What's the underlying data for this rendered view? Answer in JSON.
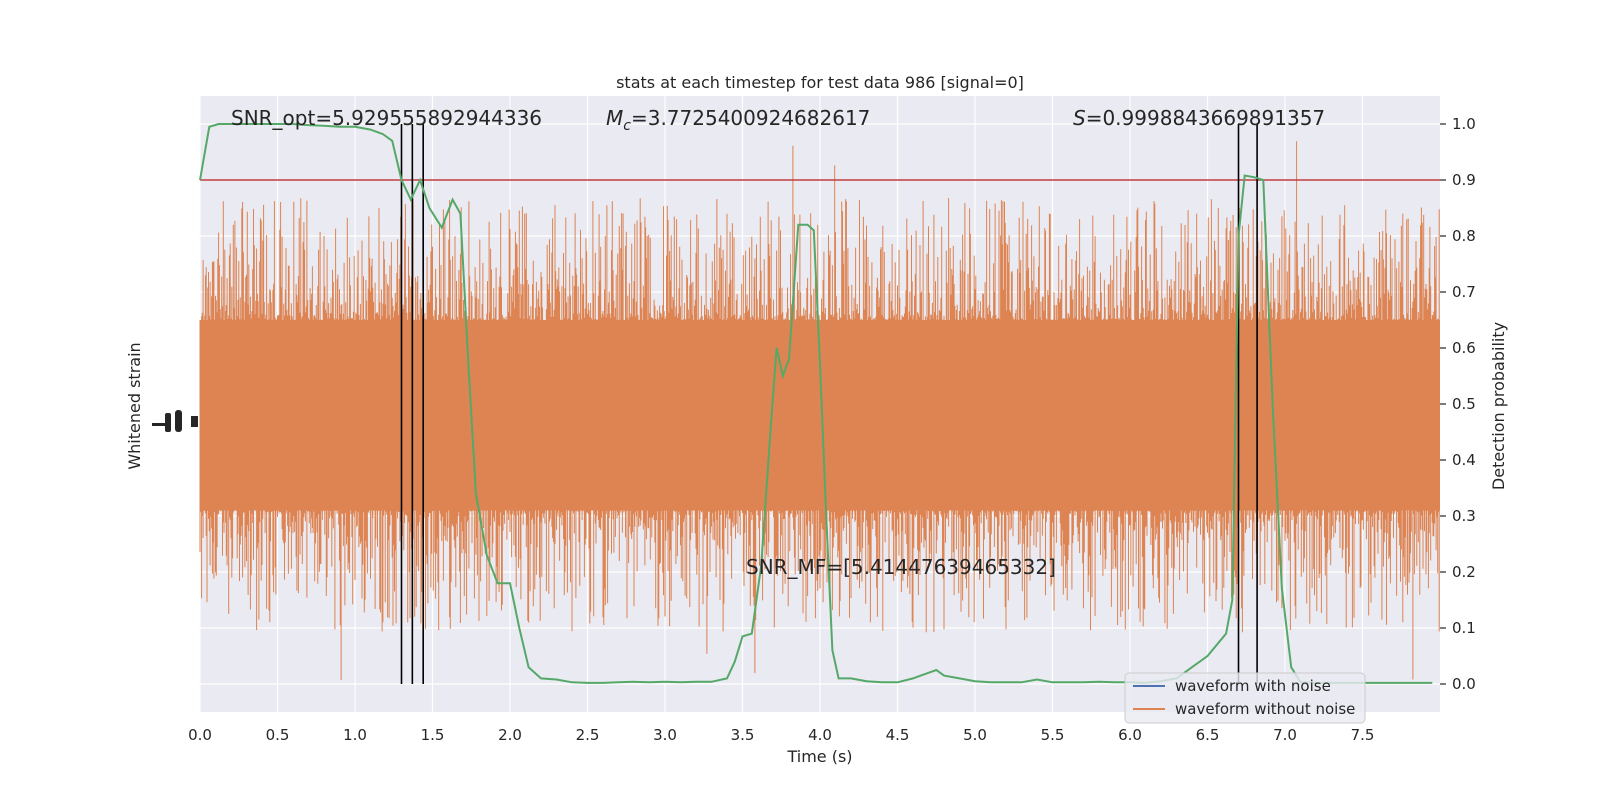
{
  "chart_data": {
    "type": "line",
    "title": "stats at each timestep for test data 986 [signal=0]",
    "xlabel": "Time (s)",
    "ylabel_left": "Whitened strain",
    "ylabel_right": "Detection probability",
    "xlim": [
      0,
      8.0
    ],
    "ylim_right": [
      -0.05,
      1.05
    ],
    "x_ticks": [
      "0.0",
      "0.5",
      "1.0",
      "1.5",
      "2.0",
      "2.5",
      "3.0",
      "3.5",
      "4.0",
      "4.5",
      "5.0",
      "5.5",
      "6.0",
      "6.5",
      "7.0",
      "7.5"
    ],
    "y_ticks_right": [
      "0.0",
      "0.1",
      "0.2",
      "0.3",
      "0.4",
      "0.5",
      "0.6",
      "0.7",
      "0.8",
      "0.9",
      "1.0"
    ],
    "grid": true,
    "legend_position": "lower-right",
    "annotations": {
      "snr_opt": "SNR_opt=5.929555892944336",
      "mc_symbol": "M",
      "mc_sub": "c",
      "mc_value": "=3.7725400924682617",
      "s_symbol": "S",
      "s_value": "=0.9998843669891357",
      "snr_mf": "SNR_MF=[5.41447639465332]"
    },
    "threshold": 0.9,
    "threshold_color": "#c03d3e",
    "detection_lines_x": [
      1.3,
      1.37,
      1.44,
      6.7,
      6.82
    ],
    "series": [
      {
        "name": "waveform with noise",
        "color": "#4c72b0",
        "values": []
      },
      {
        "name": "waveform without noise",
        "color": "#dd8452",
        "description_envelope": {
          "band_upper": 0.65,
          "band_lower": 0.31,
          "peak_max": 1.0,
          "peak_min": 0.0
        }
      },
      {
        "name": "",
        "color": "#55a868",
        "axis": "right",
        "x": [
          0.0,
          0.06,
          0.12,
          0.2,
          0.3,
          0.4,
          0.5,
          0.6,
          0.7,
          0.8,
          0.9,
          1.0,
          1.1,
          1.18,
          1.24,
          1.3,
          1.36,
          1.42,
          1.48,
          1.56,
          1.63,
          1.68,
          1.73,
          1.78,
          1.85,
          1.92,
          2.0,
          2.06,
          2.12,
          2.2,
          2.3,
          2.4,
          2.5,
          2.6,
          2.7,
          2.8,
          2.9,
          3.0,
          3.1,
          3.2,
          3.3,
          3.4,
          3.45,
          3.5,
          3.56,
          3.62,
          3.68,
          3.72,
          3.76,
          3.8,
          3.86,
          3.92,
          3.96,
          4.0,
          4.04,
          4.08,
          4.12,
          4.2,
          4.3,
          4.4,
          4.5,
          4.6,
          4.65,
          4.7,
          4.75,
          4.8,
          4.9,
          5.0,
          5.1,
          5.2,
          5.3,
          5.4,
          5.5,
          5.6,
          5.7,
          5.8,
          5.9,
          6.0,
          6.1,
          6.2,
          6.3,
          6.4,
          6.5,
          6.56,
          6.62,
          6.66,
          6.7,
          6.74,
          6.8,
          6.86,
          6.92,
          6.98,
          7.04,
          7.1,
          7.2,
          7.3,
          7.4,
          7.5,
          7.6,
          7.7,
          7.8,
          7.95
        ],
        "values": [
          0.9,
          0.995,
          1.0,
          1.0,
          1.0,
          1.0,
          1.0,
          1.0,
          0.998,
          0.997,
          0.995,
          0.995,
          0.99,
          0.982,
          0.97,
          0.9,
          0.865,
          0.9,
          0.85,
          0.815,
          0.865,
          0.84,
          0.58,
          0.34,
          0.23,
          0.18,
          0.18,
          0.1,
          0.03,
          0.01,
          0.008,
          0.003,
          0.002,
          0.002,
          0.003,
          0.004,
          0.003,
          0.004,
          0.003,
          0.004,
          0.004,
          0.01,
          0.04,
          0.085,
          0.09,
          0.21,
          0.45,
          0.6,
          0.55,
          0.58,
          0.82,
          0.82,
          0.81,
          0.57,
          0.3,
          0.06,
          0.01,
          0.01,
          0.005,
          0.003,
          0.003,
          0.01,
          0.015,
          0.02,
          0.025,
          0.015,
          0.01,
          0.005,
          0.003,
          0.003,
          0.003,
          0.008,
          0.003,
          0.003,
          0.003,
          0.004,
          0.003,
          0.003,
          0.002,
          0.005,
          0.01,
          0.03,
          0.05,
          0.07,
          0.09,
          0.15,
          0.8,
          0.908,
          0.905,
          0.9,
          0.5,
          0.17,
          0.03,
          0.003,
          0.002,
          0.002,
          0.002,
          0.002,
          0.002,
          0.002,
          0.002,
          0.002
        ]
      }
    ]
  }
}
